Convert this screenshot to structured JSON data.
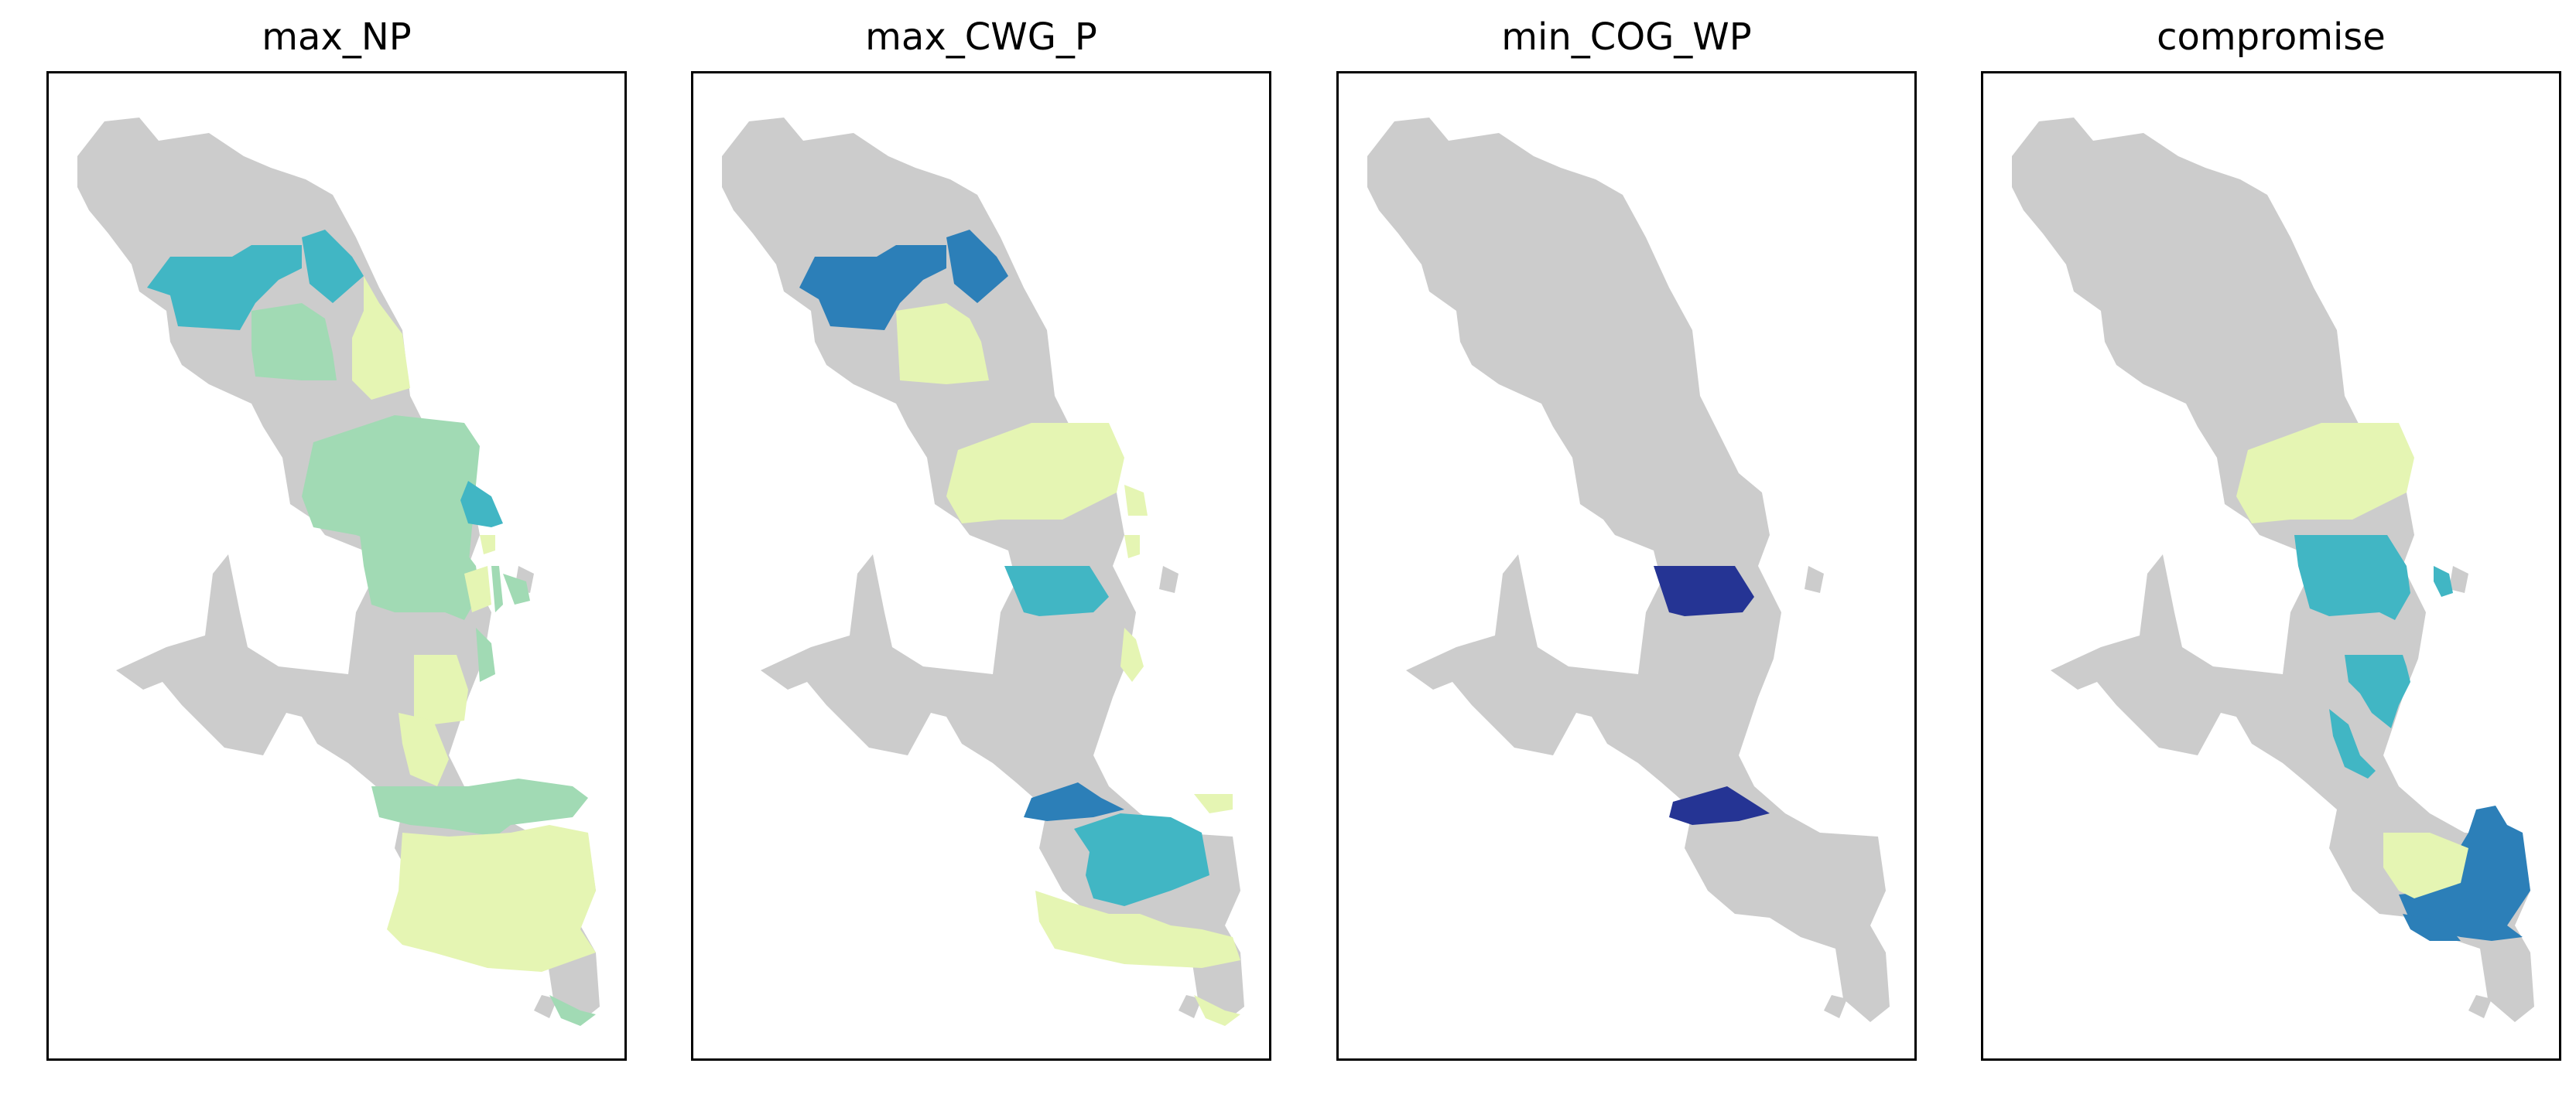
{
  "figure": {
    "colors": {
      "no_data": "#cccccc",
      "class_1": "#e5f5b3",
      "class_2": "#a1dab4",
      "class_3": "#41b6c4",
      "class_4": "#2c7fb8",
      "class_5": "#253494"
    }
  },
  "panels": [
    {
      "title": "max_NP"
    },
    {
      "title": "max_CWG_P"
    },
    {
      "title": "min_COG_WP"
    },
    {
      "title": "compromise"
    }
  ]
}
